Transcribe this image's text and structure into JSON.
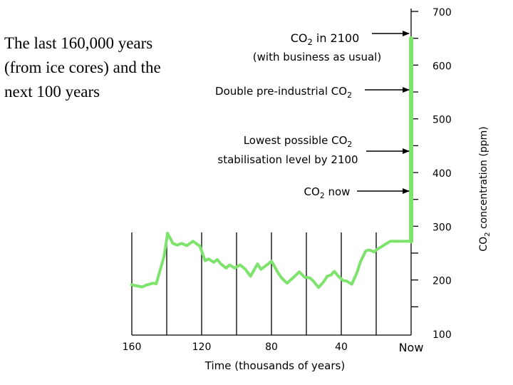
{
  "title_lines": [
    "The last 160,000 years",
    "(from ice cores) and the",
    "next 100 years"
  ],
  "chart_data": {
    "type": "line",
    "xlabel": "Time (thousands of years)",
    "ylabel": "CO2 concentration (ppm)",
    "ylabel_parts": {
      "pre": "CO",
      "sub": "2",
      "post": " concentration (ppm)"
    },
    "x_ticks": [
      "160",
      "120",
      "80",
      "40",
      "Now"
    ],
    "y_ticks": [
      "100",
      "200",
      "300",
      "400",
      "500",
      "600",
      "700"
    ],
    "ylim": [
      100,
      700
    ],
    "xlim": [
      160,
      0
    ],
    "grid": false,
    "line_color": "#7ee36c",
    "series": [
      {
        "x": [
          160,
          157,
          154,
          152,
          148,
          146,
          141.5,
          139.5,
          136.5,
          134,
          131.5,
          128.5,
          125,
          121,
          118,
          116,
          113,
          111,
          109,
          106,
          104,
          101,
          98,
          95,
          92,
          88,
          86,
          83,
          80,
          76,
          74,
          71,
          68,
          64,
          61,
          58,
          56,
          53,
          50,
          48,
          46,
          44,
          42,
          39,
          37,
          34,
          31,
          29,
          26,
          24,
          21,
          20,
          17,
          15,
          12,
          8,
          3.5,
          1
        ],
        "y": [
          191,
          189,
          187,
          190,
          194,
          193,
          244,
          287,
          268,
          265,
          268,
          264,
          272,
          263,
          236,
          239,
          233,
          238,
          230,
          222,
          228,
          222,
          228,
          220,
          207,
          230,
          220,
          227,
          235,
          212,
          203,
          194,
          203,
          215,
          205,
          204,
          198,
          186,
          197,
          207,
          209,
          216,
          208,
          199,
          198,
          192,
          214,
          234,
          254,
          256,
          252,
          256,
          262,
          266,
          272,
          272,
          272,
          272
        ]
      },
      {
        "x": [
          0,
          0
        ],
        "y": [
          272,
          650
        ]
      }
    ],
    "annotations": [
      {
        "pre": "CO",
        "sub": "2",
        "post": " in 2100"
      },
      {
        "pre": "(with business as usual)",
        "sub": "",
        "post": ""
      },
      {
        "pre": "Double pre-industrial CO",
        "sub": "2",
        "post": ""
      },
      {
        "pre": "Lowest possible CO",
        "sub": "2",
        "post": ""
      },
      {
        "pre": "stabilisation level by 2100",
        "sub": "",
        "post": ""
      },
      {
        "pre": "CO",
        "sub": "2",
        "post": " now"
      }
    ]
  }
}
